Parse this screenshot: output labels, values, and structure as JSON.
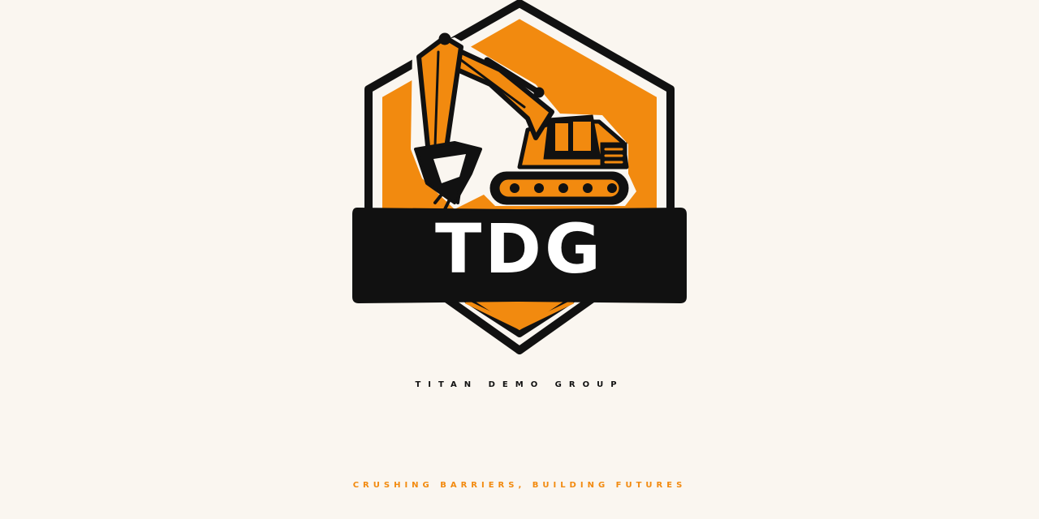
{
  "brand": {
    "monogram": "TDG",
    "name": "TITAN DEMO GROUP",
    "tagline": "CRUSHING BARRIERS, BUILDING FUTURES"
  },
  "icons": {
    "emblem": "excavator-in-hexagon-icon"
  },
  "colors": {
    "background": "#FAF6F0",
    "accent": "#F28A0F",
    "dark": "#111111",
    "light": "#FFFFFF"
  }
}
